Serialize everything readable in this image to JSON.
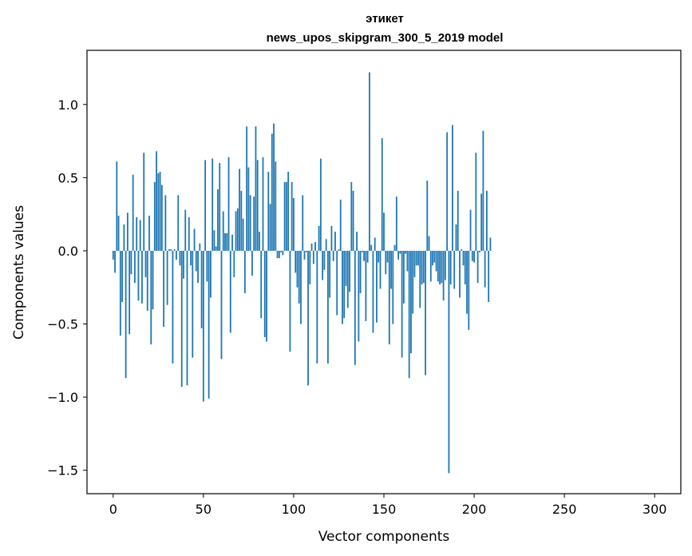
{
  "chart_data": {
    "type": "bar",
    "title": "этикет",
    "subtitle": "news_upos_skipgram_300_5_2019 model",
    "xlabel": "Vector components",
    "ylabel": "Components values",
    "xlim": [
      -14.5,
      314.5
    ],
    "ylim": [
      -1.66,
      1.37
    ],
    "xticks": [
      0,
      50,
      100,
      150,
      200,
      250,
      300
    ],
    "yticks": [
      -1.5,
      -1.0,
      -0.5,
      0.0,
      0.5,
      1.0
    ],
    "ytick_labels": [
      "−1.5",
      "−1.0",
      "−0.5",
      "0.0",
      "0.5",
      "1.0"
    ],
    "grid": false,
    "bar_color": "#1f77b4",
    "x_start": 0,
    "values": [
      -0.06,
      -0.15,
      0.61,
      0.24,
      -0.58,
      -0.35,
      0.18,
      -0.87,
      0.26,
      -0.57,
      -0.16,
      0.52,
      -0.22,
      0.23,
      -0.34,
      0.21,
      -0.36,
      0.67,
      -0.18,
      -0.41,
      0.24,
      -0.64,
      -0.4,
      0.47,
      0.68,
      0.53,
      0.54,
      0.45,
      -0.52,
      0.38,
      -0.37,
      0.01,
      0.01,
      -0.77,
      0.01,
      -0.06,
      0.38,
      -0.1,
      -0.93,
      -0.19,
      0.28,
      -0.92,
      0.23,
      -0.1,
      -0.73,
      0.15,
      -0.14,
      -0.22,
      0.05,
      -0.53,
      -1.03,
      0.62,
      -0.21,
      -1.01,
      -0.32,
      0.63,
      0.14,
      0.03,
      0.42,
      0.6,
      -0.74,
      0.27,
      0.12,
      0.12,
      0.64,
      -0.56,
      0.11,
      -0.18,
      0.27,
      0.29,
      0.56,
      0.41,
      0.22,
      -0.29,
      0.85,
      0.57,
      0.38,
      -0.17,
      0.37,
      0.85,
      0.62,
      0.13,
      -0.46,
      0.64,
      -0.59,
      -0.62,
      0.54,
      0.32,
      0.8,
      0.87,
      0.61,
      -0.05,
      -0.05,
      -0.01,
      -0.03,
      0.47,
      0.47,
      0.54,
      -0.69,
      0.47,
      0.36,
      -0.15,
      -0.25,
      -0.36,
      -0.5,
      0.38,
      -0.06,
      -0.01,
      -0.92,
      -0.23,
      0.05,
      -0.09,
      0.06,
      -0.77,
      0.17,
      0.63,
      -0.2,
      -0.13,
      0.08,
      -0.77,
      -0.32,
      0.17,
      -0.07,
      0.13,
      -0.44,
      0.01,
      0.35,
      -0.5,
      -0.46,
      -0.24,
      -0.39,
      -0.28,
      0.47,
      0.41,
      -0.78,
      0.13,
      -0.62,
      -0.29,
      -0.01,
      -0.07,
      -0.48,
      -0.08,
      1.22,
      0.04,
      -0.56,
      0.09,
      -0.49,
      -0.08,
      -0.26,
      0.77,
      0.26,
      -0.16,
      -0.08,
      -0.64,
      -0.26,
      -0.5,
      0.04,
      0.37,
      -0.06,
      -0.02,
      -0.73,
      -0.36,
      -0.02,
      -0.14,
      -0.87,
      -0.7,
      -0.43,
      -0.18,
      -0.1,
      -0.1,
      -0.39,
      -0.23,
      -0.22,
      -0.85,
      0.48,
      0.1,
      -0.21,
      -0.1,
      -0.08,
      -0.14,
      -0.21,
      -0.23,
      -0.22,
      -0.34,
      -0.2,
      0.81,
      -1.52,
      -0.23,
      0.86,
      -0.26,
      0.18,
      0.41,
      -0.32,
      0.01,
      -0.1,
      -0.23,
      -0.43,
      -0.54,
      0.28,
      -0.07,
      -0.08,
      0.67,
      -0.22,
      -0.01,
      0.39,
      0.82,
      -0.25,
      0.41,
      -0.35,
      0.09
    ]
  }
}
